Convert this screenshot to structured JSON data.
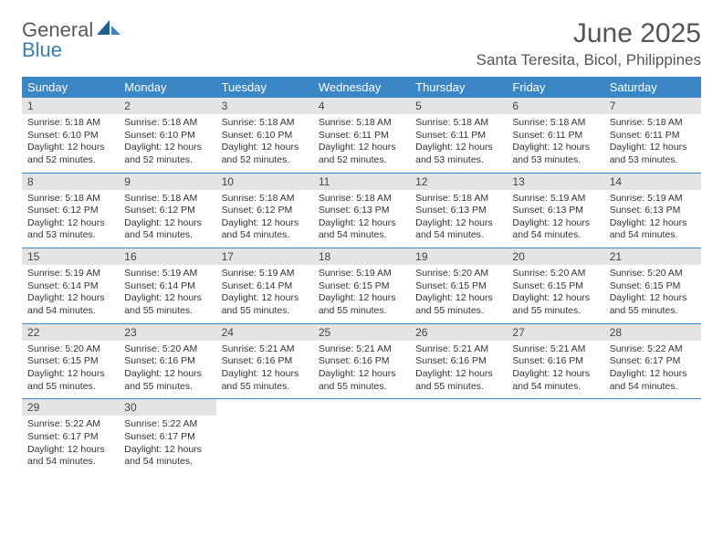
{
  "logo": {
    "general": "General",
    "blue": "Blue"
  },
  "title": "June 2025",
  "location": "Santa Teresita, Bicol, Philippines",
  "colors": {
    "header_bg": "#3b86c4",
    "header_text": "#ffffff",
    "daynum_bg": "#e4e4e4",
    "border": "#3b86c4",
    "body_text": "#333333",
    "logo_gray": "#5a5a5a",
    "logo_blue": "#3b7fb5",
    "page_bg": "#ffffff"
  },
  "typography": {
    "title_fontsize": 30,
    "location_fontsize": 17,
    "header_fontsize": 13,
    "daynum_fontsize": 12,
    "body_fontsize": 10.5
  },
  "layout": {
    "columns": 7,
    "rows": 5
  },
  "weekdays": [
    "Sunday",
    "Monday",
    "Tuesday",
    "Wednesday",
    "Thursday",
    "Friday",
    "Saturday"
  ],
  "days": [
    {
      "n": "1",
      "sr": "Sunrise: 5:18 AM",
      "ss": "Sunset: 6:10 PM",
      "d1": "Daylight: 12 hours",
      "d2": "and 52 minutes."
    },
    {
      "n": "2",
      "sr": "Sunrise: 5:18 AM",
      "ss": "Sunset: 6:10 PM",
      "d1": "Daylight: 12 hours",
      "d2": "and 52 minutes."
    },
    {
      "n": "3",
      "sr": "Sunrise: 5:18 AM",
      "ss": "Sunset: 6:10 PM",
      "d1": "Daylight: 12 hours",
      "d2": "and 52 minutes."
    },
    {
      "n": "4",
      "sr": "Sunrise: 5:18 AM",
      "ss": "Sunset: 6:11 PM",
      "d1": "Daylight: 12 hours",
      "d2": "and 52 minutes."
    },
    {
      "n": "5",
      "sr": "Sunrise: 5:18 AM",
      "ss": "Sunset: 6:11 PM",
      "d1": "Daylight: 12 hours",
      "d2": "and 53 minutes."
    },
    {
      "n": "6",
      "sr": "Sunrise: 5:18 AM",
      "ss": "Sunset: 6:11 PM",
      "d1": "Daylight: 12 hours",
      "d2": "and 53 minutes."
    },
    {
      "n": "7",
      "sr": "Sunrise: 5:18 AM",
      "ss": "Sunset: 6:11 PM",
      "d1": "Daylight: 12 hours",
      "d2": "and 53 minutes."
    },
    {
      "n": "8",
      "sr": "Sunrise: 5:18 AM",
      "ss": "Sunset: 6:12 PM",
      "d1": "Daylight: 12 hours",
      "d2": "and 53 minutes."
    },
    {
      "n": "9",
      "sr": "Sunrise: 5:18 AM",
      "ss": "Sunset: 6:12 PM",
      "d1": "Daylight: 12 hours",
      "d2": "and 54 minutes."
    },
    {
      "n": "10",
      "sr": "Sunrise: 5:18 AM",
      "ss": "Sunset: 6:12 PM",
      "d1": "Daylight: 12 hours",
      "d2": "and 54 minutes."
    },
    {
      "n": "11",
      "sr": "Sunrise: 5:18 AM",
      "ss": "Sunset: 6:13 PM",
      "d1": "Daylight: 12 hours",
      "d2": "and 54 minutes."
    },
    {
      "n": "12",
      "sr": "Sunrise: 5:18 AM",
      "ss": "Sunset: 6:13 PM",
      "d1": "Daylight: 12 hours",
      "d2": "and 54 minutes."
    },
    {
      "n": "13",
      "sr": "Sunrise: 5:19 AM",
      "ss": "Sunset: 6:13 PM",
      "d1": "Daylight: 12 hours",
      "d2": "and 54 minutes."
    },
    {
      "n": "14",
      "sr": "Sunrise: 5:19 AM",
      "ss": "Sunset: 6:13 PM",
      "d1": "Daylight: 12 hours",
      "d2": "and 54 minutes."
    },
    {
      "n": "15",
      "sr": "Sunrise: 5:19 AM",
      "ss": "Sunset: 6:14 PM",
      "d1": "Daylight: 12 hours",
      "d2": "and 54 minutes."
    },
    {
      "n": "16",
      "sr": "Sunrise: 5:19 AM",
      "ss": "Sunset: 6:14 PM",
      "d1": "Daylight: 12 hours",
      "d2": "and 55 minutes."
    },
    {
      "n": "17",
      "sr": "Sunrise: 5:19 AM",
      "ss": "Sunset: 6:14 PM",
      "d1": "Daylight: 12 hours",
      "d2": "and 55 minutes."
    },
    {
      "n": "18",
      "sr": "Sunrise: 5:19 AM",
      "ss": "Sunset: 6:15 PM",
      "d1": "Daylight: 12 hours",
      "d2": "and 55 minutes."
    },
    {
      "n": "19",
      "sr": "Sunrise: 5:20 AM",
      "ss": "Sunset: 6:15 PM",
      "d1": "Daylight: 12 hours",
      "d2": "and 55 minutes."
    },
    {
      "n": "20",
      "sr": "Sunrise: 5:20 AM",
      "ss": "Sunset: 6:15 PM",
      "d1": "Daylight: 12 hours",
      "d2": "and 55 minutes."
    },
    {
      "n": "21",
      "sr": "Sunrise: 5:20 AM",
      "ss": "Sunset: 6:15 PM",
      "d1": "Daylight: 12 hours",
      "d2": "and 55 minutes."
    },
    {
      "n": "22",
      "sr": "Sunrise: 5:20 AM",
      "ss": "Sunset: 6:15 PM",
      "d1": "Daylight: 12 hours",
      "d2": "and 55 minutes."
    },
    {
      "n": "23",
      "sr": "Sunrise: 5:20 AM",
      "ss": "Sunset: 6:16 PM",
      "d1": "Daylight: 12 hours",
      "d2": "and 55 minutes."
    },
    {
      "n": "24",
      "sr": "Sunrise: 5:21 AM",
      "ss": "Sunset: 6:16 PM",
      "d1": "Daylight: 12 hours",
      "d2": "and 55 minutes."
    },
    {
      "n": "25",
      "sr": "Sunrise: 5:21 AM",
      "ss": "Sunset: 6:16 PM",
      "d1": "Daylight: 12 hours",
      "d2": "and 55 minutes."
    },
    {
      "n": "26",
      "sr": "Sunrise: 5:21 AM",
      "ss": "Sunset: 6:16 PM",
      "d1": "Daylight: 12 hours",
      "d2": "and 55 minutes."
    },
    {
      "n": "27",
      "sr": "Sunrise: 5:21 AM",
      "ss": "Sunset: 6:16 PM",
      "d1": "Daylight: 12 hours",
      "d2": "and 54 minutes."
    },
    {
      "n": "28",
      "sr": "Sunrise: 5:22 AM",
      "ss": "Sunset: 6:17 PM",
      "d1": "Daylight: 12 hours",
      "d2": "and 54 minutes."
    },
    {
      "n": "29",
      "sr": "Sunrise: 5:22 AM",
      "ss": "Sunset: 6:17 PM",
      "d1": "Daylight: 12 hours",
      "d2": "and 54 minutes."
    },
    {
      "n": "30",
      "sr": "Sunrise: 5:22 AM",
      "ss": "Sunset: 6:17 PM",
      "d1": "Daylight: 12 hours",
      "d2": "and 54 minutes."
    }
  ]
}
